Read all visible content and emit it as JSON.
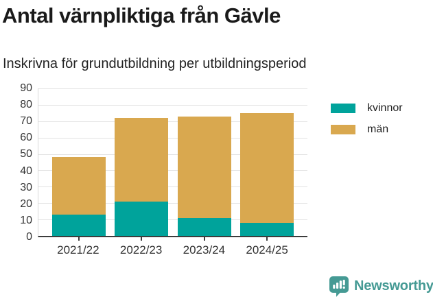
{
  "header": {
    "title": "Antal värnpliktiga från Gävle",
    "subtitle": "Inskrivna för grundutbildning per utbildningsperiod"
  },
  "chart_data": {
    "type": "bar",
    "stacked": true,
    "title": "Antal värnpliktiga från Gävle",
    "subtitle": "Inskrivna för grundutbildning per utbildningsperiod",
    "categories": [
      "2021/22",
      "2022/23",
      "2023/24",
      "2024/25"
    ],
    "series": [
      {
        "name": "kvinnor",
        "color": "#00a39b",
        "values": [
          13,
          21,
          11,
          8
        ]
      },
      {
        "name": "män",
        "color": "#d9a84f",
        "values": [
          35,
          51,
          62,
          67
        ]
      }
    ],
    "stack_totals": [
      48,
      72,
      73,
      75
    ],
    "xlabel": "",
    "ylabel": "",
    "ylim": [
      0,
      90
    ],
    "yticks": [
      0,
      10,
      20,
      30,
      40,
      50,
      60,
      70,
      80,
      90
    ],
    "grid": "horizontal",
    "legend_position": "right"
  },
  "footer": {
    "brand": "Newsworthy"
  },
  "colors": {
    "kvinnor": "#00a39b",
    "man": "#d9a84f",
    "brand_teal": "#459a94",
    "gridline": "#e2e2e2",
    "axis": "#3c3c3c",
    "title_text": "#1a1a1a",
    "axis_text": "#333333"
  }
}
